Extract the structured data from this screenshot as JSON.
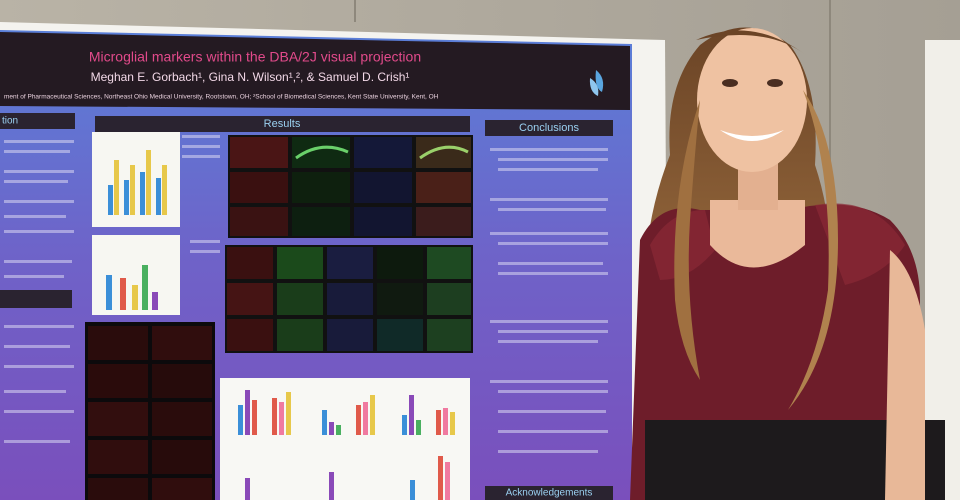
{
  "poster": {
    "title": "Microglial markers within the DBA/2J visual projection",
    "authors": "Meghan E. Gorbach¹, Gina N. Wilson¹,², & Samuel D. Crish¹",
    "affiliation": "ment of Pharmaceutical Sciences, Northeast Ohio Medical University, Rootstown, OH; ²School of Biomedical Sciences, Kent State University, Kent, OH",
    "sections": [
      "tion",
      "Results",
      "Conclusions",
      "Acknowledgements"
    ]
  }
}
